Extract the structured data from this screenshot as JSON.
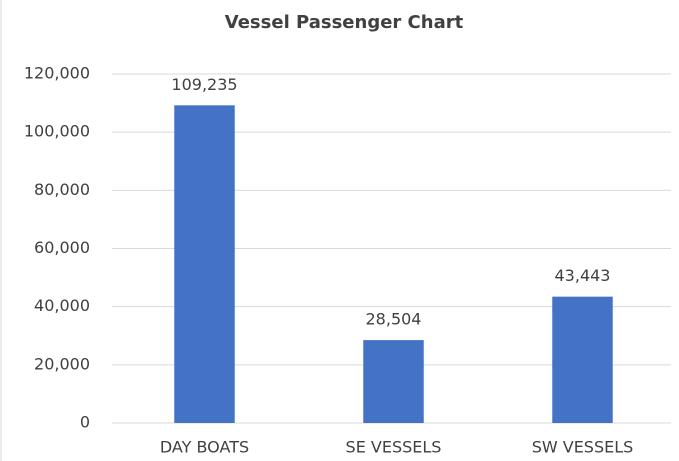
{
  "chart_data": {
    "type": "bar",
    "title": "Vessel Passenger Chart",
    "categories": [
      "DAY BOATS",
      "SE VESSELS",
      "SW VESSELS"
    ],
    "values": [
      109235,
      28504,
      43443
    ],
    "value_labels": [
      "109,235",
      "28,504",
      "43,443"
    ],
    "color": "#4472c4",
    "ylim": [
      0,
      120000
    ],
    "yticks": [
      0,
      {
        "value": 20000,
        "label": "20,000"
      },
      {
        "value": 40000,
        "label": "40,000"
      },
      {
        "value": 60000,
        "label": "60,000"
      },
      {
        "value": 80000,
        "label": "80,000"
      },
      {
        "value": 100000,
        "label": "100,000"
      },
      {
        "value": 120000,
        "label": "120,000"
      }
    ],
    "grid": true
  }
}
